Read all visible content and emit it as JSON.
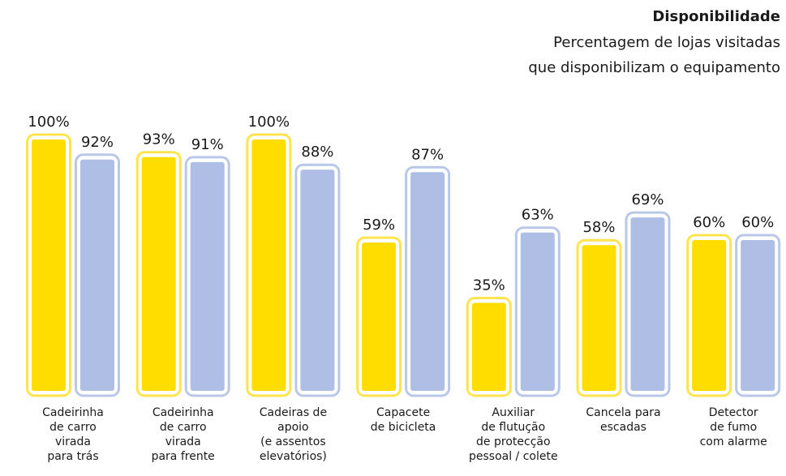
{
  "chart_data": {
    "type": "bar",
    "title": "Disponibilidade",
    "subtitle": "Percentagem de lojas visitadas\nque disponibilizam o equipamento",
    "categories": [
      "Cadeirinha\nde carro\nvirada\npara trás",
      "Cadeirinha\nde carro\nvirada\npara frente",
      "Cadeiras de\napoio\n(e assentos\nelevatórios)",
      "Capacete\nde bicicleta",
      "Auxiliar\nde flutução\nde protecção\npessoal / colete",
      "Cancela para\nescadas",
      "Detector\nde fumo\ncom alarme"
    ],
    "series": [
      {
        "color": "#ffdd00",
        "outline": "#ffe44d",
        "values": [
          100,
          93,
          100,
          59,
          35,
          58,
          60
        ],
        "value_labels": [
          "100%",
          "93%",
          "100%",
          "59%",
          "35%",
          "58%",
          "60%"
        ]
      },
      {
        "color": "#aebee4",
        "outline": "#b9c8e8",
        "values": [
          92,
          91,
          88,
          87,
          63,
          69,
          60
        ],
        "value_labels": [
          "92%",
          "91%",
          "88%",
          "87%",
          "63%",
          "69%",
          "60%"
        ]
      }
    ],
    "ylim": [
      0,
      100
    ]
  }
}
